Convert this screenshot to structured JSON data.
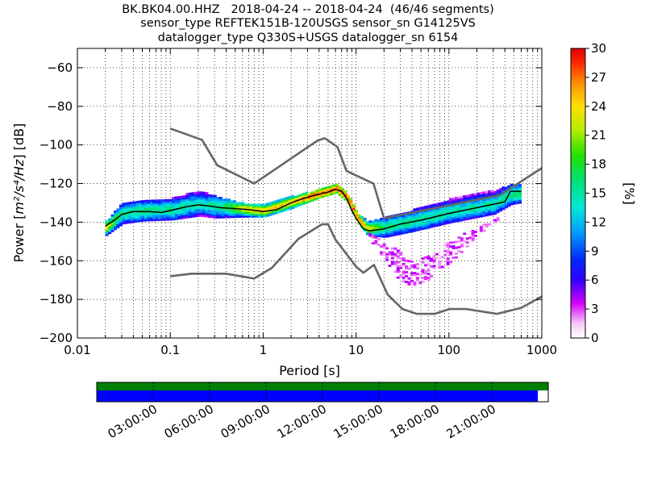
{
  "header": {
    "line1": "BK.BK04.00.HHZ   2018-04-24 -- 2018-04-24  (46/46 segments)",
    "line2": "sensor_type REFTEK151B-120USGS sensor_sn G14125VS",
    "line3": "datalogger_type Q330S+USGS datalogger_sn 6154"
  },
  "colors": {
    "model_curves": "#666666",
    "mean_curve": "#000000",
    "grid": "#000000",
    "coverage_top": "#008000",
    "coverage_bottom": "#0000ff"
  },
  "chart_data": [
    {
      "type": "heatmap",
      "title": "BK.BK04.00.HHZ   2018-04-24 -- 2018-04-24  (46/46 segments)",
      "xlabel": "Period [s]",
      "ylabel_prefix": "Power [",
      "ylabel_units": "m²/s⁴/Hz",
      "ylabel_suffix": "] [dB]",
      "xscale": "log",
      "xlim": [
        0.01,
        1000
      ],
      "ylim": [
        -200,
        -50
      ],
      "grid": true,
      "x_ticks": [
        {
          "v": 0.01,
          "label": "0.01"
        },
        {
          "v": 0.1,
          "label": "0.1"
        },
        {
          "v": 1,
          "label": "1"
        },
        {
          "v": 10,
          "label": "10"
        },
        {
          "v": 100,
          "label": "100"
        },
        {
          "v": 1000,
          "label": "1000"
        }
      ],
      "y_ticks": [
        {
          "v": -60,
          "label": "−60"
        },
        {
          "v": -80,
          "label": "−80"
        },
        {
          "v": -100,
          "label": "−100"
        },
        {
          "v": -120,
          "label": "−120"
        },
        {
          "v": -140,
          "label": "−140"
        },
        {
          "v": -160,
          "label": "−160"
        },
        {
          "v": -180,
          "label": "−180"
        },
        {
          "v": -200,
          "label": "−200"
        }
      ],
      "colorbar": {
        "label": "[%]",
        "min": 0,
        "max": 30,
        "ticks": [
          {
            "v": 0,
            "label": "0"
          },
          {
            "v": 3,
            "label": "3"
          },
          {
            "v": 6,
            "label": "6"
          },
          {
            "v": 9,
            "label": "9"
          },
          {
            "v": 12,
            "label": "12"
          },
          {
            "v": 15,
            "label": "15"
          },
          {
            "v": 18,
            "label": "18"
          },
          {
            "v": 21,
            "label": "21"
          },
          {
            "v": 24,
            "label": "24"
          },
          {
            "v": 27,
            "label": "27"
          },
          {
            "v": 30,
            "label": "30"
          }
        ]
      },
      "new_high_noise_model": [
        [
          0.1,
          -91.5
        ],
        [
          0.22,
          -97.4
        ],
        [
          0.32,
          -110.5
        ],
        [
          0.8,
          -120
        ],
        [
          3.8,
          -97.9
        ],
        [
          4.6,
          -96.5
        ],
        [
          6.3,
          -101
        ],
        [
          7.9,
          -113.5
        ],
        [
          15.4,
          -120
        ],
        [
          20,
          -138
        ],
        [
          354.8,
          -126
        ],
        [
          1000,
          -112
        ]
      ],
      "new_low_noise_model": [
        [
          0.1,
          -168
        ],
        [
          0.17,
          -166.7
        ],
        [
          0.4,
          -166.7
        ],
        [
          0.8,
          -169.2
        ],
        [
          1.24,
          -163.7
        ],
        [
          2.4,
          -148.6
        ],
        [
          4.3,
          -141.1
        ],
        [
          5,
          -141.1
        ],
        [
          6,
          -149
        ],
        [
          10,
          -163
        ],
        [
          12,
          -166.2
        ],
        [
          15.6,
          -162.1
        ],
        [
          21.9,
          -177.5
        ],
        [
          31.6,
          -185
        ],
        [
          45,
          -187.5
        ],
        [
          70,
          -187.5
        ],
        [
          101,
          -185
        ],
        [
          154,
          -185
        ],
        [
          328,
          -187.5
        ],
        [
          600,
          -184.4
        ],
        [
          1000,
          -178.5
        ]
      ],
      "mean_psd": [
        [
          0.02,
          -142
        ],
        [
          0.025,
          -139
        ],
        [
          0.03,
          -136
        ],
        [
          0.04,
          -134.5
        ],
        [
          0.06,
          -134.5
        ],
        [
          0.08,
          -135
        ],
        [
          0.1,
          -134
        ],
        [
          0.15,
          -132
        ],
        [
          0.2,
          -131
        ],
        [
          0.25,
          -131.5
        ],
        [
          0.35,
          -132.5
        ],
        [
          0.5,
          -133
        ],
        [
          0.7,
          -133.5
        ],
        [
          1,
          -134.5
        ],
        [
          1.4,
          -133.5
        ],
        [
          2,
          -130
        ],
        [
          2.8,
          -127.5
        ],
        [
          4,
          -125.5
        ],
        [
          5,
          -124.5
        ],
        [
          6,
          -123
        ],
        [
          7,
          -124
        ],
        [
          8,
          -128
        ],
        [
          9,
          -134
        ],
        [
          10,
          -138
        ],
        [
          12,
          -143.5
        ],
        [
          14,
          -144.5
        ],
        [
          20,
          -143.5
        ],
        [
          30,
          -141
        ],
        [
          50,
          -139
        ],
        [
          100,
          -135.5
        ],
        [
          200,
          -132.5
        ],
        [
          400,
          -129.5
        ],
        [
          460,
          -124
        ],
        [
          600,
          -124
        ]
      ],
      "psd_band_core": [
        {
          "x": 0.02,
          "c": -143,
          "h": 2,
          "lo": -4,
          "hi": 3
        },
        {
          "x": 0.03,
          "c": -136,
          "h": 3,
          "lo": -5,
          "hi": 6
        },
        {
          "x": 0.05,
          "c": -134.5,
          "h": 3,
          "lo": -5,
          "hi": 5
        },
        {
          "x": 0.1,
          "c": -134,
          "h": 3,
          "lo": -5,
          "hi": 6
        },
        {
          "x": 0.2,
          "c": -131,
          "h": 3,
          "lo": -6,
          "hi": 7
        },
        {
          "x": 0.3,
          "c": -132,
          "h": 3,
          "lo": -6,
          "hi": 5
        },
        {
          "x": 0.6,
          "c": -133.5,
          "h": 2,
          "lo": -4,
          "hi": 3
        },
        {
          "x": 1,
          "c": -134.5,
          "h": 2,
          "lo": -3,
          "hi": 3
        },
        {
          "x": 2,
          "c": -130,
          "h": 2,
          "lo": -3,
          "hi": 3
        },
        {
          "x": 4,
          "c": -125.5,
          "h": 2,
          "lo": -2,
          "hi": 2
        },
        {
          "x": 6,
          "c": -123,
          "h": 2,
          "lo": -2,
          "hi": 2
        },
        {
          "x": 8,
          "c": -128,
          "h": 2,
          "lo": -2,
          "hi": 2
        },
        {
          "x": 10,
          "c": -138,
          "h": 2,
          "lo": -2,
          "hi": 2
        },
        {
          "x": 13,
          "c": -144,
          "h": 2,
          "lo": -3,
          "hi": 4
        },
        {
          "x": 20,
          "c": -143,
          "h": 3,
          "lo": -5,
          "hi": 5
        },
        {
          "x": 40,
          "c": -140,
          "h": 3,
          "lo": -5,
          "hi": 6
        },
        {
          "x": 100,
          "c": -135.5,
          "h": 3,
          "lo": -5,
          "hi": 7
        },
        {
          "x": 300,
          "c": -131,
          "h": 3,
          "lo": -5,
          "hi": 7
        },
        {
          "x": 460,
          "c": -126,
          "h": 3,
          "lo": -5,
          "hi": 5
        },
        {
          "x": 600,
          "c": -125,
          "h": 3,
          "lo": -5,
          "hi": 4
        }
      ],
      "psd_fan": [
        {
          "x": 13,
          "lo": -148,
          "hi": -145
        },
        {
          "x": 20,
          "lo": -160,
          "hi": -150
        },
        {
          "x": 30,
          "lo": -172,
          "hi": -156
        },
        {
          "x": 40,
          "lo": -173,
          "hi": -160
        },
        {
          "x": 60,
          "lo": -170,
          "hi": -158
        },
        {
          "x": 80,
          "lo": -165,
          "hi": -153
        },
        {
          "x": 120,
          "lo": -158,
          "hi": -148
        },
        {
          "x": 200,
          "lo": -147,
          "hi": -143
        },
        {
          "x": 350,
          "lo": -138,
          "hi": -137
        }
      ]
    },
    {
      "type": "table",
      "name": "data coverage",
      "time_ticks": [
        "03:00:00",
        "06:00:00",
        "09:00:00",
        "12:00:00",
        "15:00:00",
        "18:00:00",
        "21:00:00"
      ],
      "segments_coverage_fraction": 1.0,
      "data_coverage_fraction": 0.977
    }
  ]
}
